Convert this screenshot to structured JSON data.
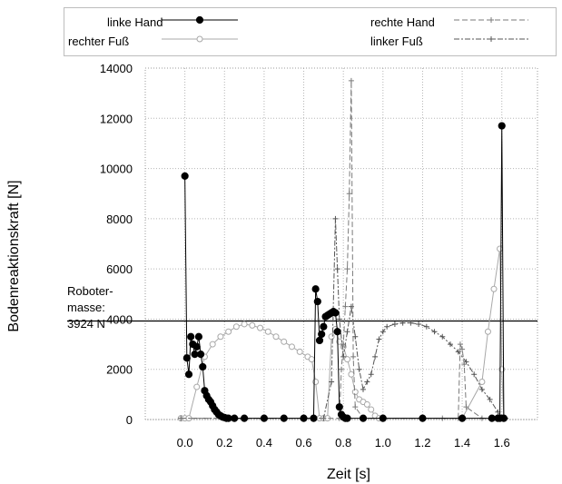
{
  "chart_data": {
    "type": "line",
    "title": "",
    "xlabel": "Zeit [s]",
    "ylabel": "Bodenreaktionskraft [N]",
    "xlim": [
      -0.2,
      1.78
    ],
    "ylim": [
      0,
      14000
    ],
    "xticks": [
      "0.0",
      "0.2",
      "0.4",
      "0.6",
      "0.8",
      "1.0",
      "1.2",
      "1.4",
      "1.6"
    ],
    "yticks": [
      "0",
      "2000",
      "4000",
      "6000",
      "8000",
      "10000",
      "12000",
      "14000"
    ],
    "grid": true,
    "legend_position": "top",
    "reference_line": {
      "value": 3924,
      "label_lines": [
        "Roboter-",
        "masse:",
        "3924 N"
      ]
    },
    "series": [
      {
        "name": "linke Hand",
        "color": "#000000",
        "x": [
          0.0,
          0.01,
          0.02,
          0.03,
          0.04,
          0.05,
          0.06,
          0.07,
          0.08,
          0.09,
          0.1,
          0.11,
          0.12,
          0.13,
          0.14,
          0.15,
          0.16,
          0.17,
          0.18,
          0.19,
          0.2,
          0.21,
          0.22,
          0.25,
          0.3,
          0.4,
          0.5,
          0.6,
          0.65,
          0.66,
          0.67,
          0.68,
          0.69,
          0.7,
          0.71,
          0.72,
          0.73,
          0.74,
          0.75,
          0.76,
          0.77,
          0.78,
          0.79,
          0.8,
          0.81,
          0.82,
          0.9,
          1.0,
          1.2,
          1.4,
          1.55,
          1.58,
          1.59,
          1.6,
          1.61
        ],
        "y": [
          9700,
          2450,
          1800,
          3300,
          3000,
          2600,
          2900,
          3300,
          2600,
          2100,
          1150,
          950,
          800,
          700,
          550,
          400,
          300,
          200,
          150,
          100,
          80,
          50,
          50,
          50,
          50,
          50,
          50,
          50,
          50,
          5200,
          4700,
          3150,
          3400,
          3700,
          4100,
          4150,
          4200,
          4250,
          4300,
          4250,
          3500,
          500,
          200,
          100,
          50,
          50,
          50,
          50,
          50,
          50,
          50,
          50,
          50,
          11700,
          50
        ]
      },
      {
        "name": "rechte Hand",
        "color": "#7a7a7a",
        "x": [
          -0.02,
          0.6,
          0.78,
          0.79,
          0.8,
          0.81,
          0.82,
          0.83,
          0.84,
          0.85,
          0.86,
          0.9,
          1.0,
          1.3,
          1.38,
          1.39,
          1.4,
          1.41,
          1.42,
          1.5,
          1.6
        ],
        "y": [
          50,
          50,
          50,
          2000,
          3000,
          4500,
          6000,
          9000,
          13500,
          2500,
          500,
          50,
          50,
          50,
          50,
          3000,
          2800,
          2200,
          500,
          50,
          50
        ]
      },
      {
        "name": "rechter Fuß",
        "color": "#a8a8a8",
        "x": [
          -0.02,
          0.0,
          0.02,
          0.06,
          0.1,
          0.14,
          0.18,
          0.22,
          0.26,
          0.3,
          0.34,
          0.38,
          0.42,
          0.46,
          0.5,
          0.54,
          0.58,
          0.62,
          0.64,
          0.66,
          0.68,
          0.7,
          0.72,
          0.74,
          0.76,
          0.78,
          0.8,
          0.82,
          0.84,
          0.86,
          0.88,
          0.9,
          0.92,
          0.94,
          0.96,
          0.98,
          1.0,
          1.2,
          1.4,
          1.5,
          1.53,
          1.56,
          1.59,
          1.6,
          1.61
        ],
        "y": [
          50,
          50,
          50,
          1300,
          2500,
          3000,
          3300,
          3500,
          3700,
          3800,
          3750,
          3650,
          3500,
          3300,
          3100,
          2900,
          2700,
          2500,
          2400,
          1500,
          50,
          50,
          50,
          3300,
          3600,
          3100,
          2900,
          2400,
          1800,
          1100,
          800,
          700,
          600,
          400,
          150,
          50,
          50,
          50,
          50,
          1500,
          3500,
          5200,
          6800,
          2000,
          50
        ]
      },
      {
        "name": "linker Fuß",
        "color": "#555555",
        "x": [
          -0.02,
          0.7,
          0.74,
          0.76,
          0.77,
          0.78,
          0.8,
          0.82,
          0.84,
          0.86,
          0.88,
          0.9,
          0.92,
          0.94,
          0.96,
          0.98,
          1.0,
          1.02,
          1.06,
          1.1,
          1.14,
          1.18,
          1.22,
          1.26,
          1.3,
          1.34,
          1.38,
          1.42,
          1.46,
          1.5,
          1.54,
          1.58,
          1.6,
          1.62
        ],
        "y": [
          50,
          50,
          1500,
          8000,
          6000,
          4000,
          2500,
          3500,
          4500,
          3300,
          2000,
          1200,
          1500,
          1800,
          2500,
          3200,
          3500,
          3700,
          3800,
          3850,
          3850,
          3800,
          3700,
          3500,
          3300,
          3000,
          2700,
          2300,
          1800,
          1200,
          800,
          300,
          100,
          50
        ]
      }
    ]
  }
}
